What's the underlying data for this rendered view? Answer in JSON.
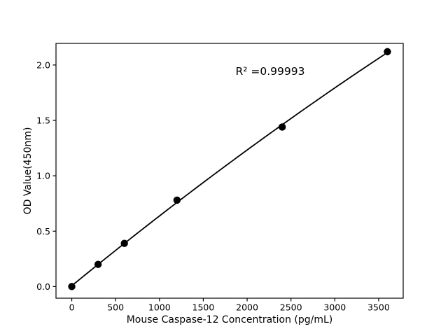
{
  "chart_data": {
    "type": "scatter",
    "title": "",
    "xlabel": "Mouse Caspase-12 Concentration (pg/mL)",
    "ylabel": "OD Value(450nm)",
    "annotation": "R² =0.99993",
    "series": [
      {
        "name": "standard-curve",
        "x": [
          0,
          300,
          600,
          1200,
          2400,
          3600
        ],
        "y": [
          0.0,
          0.2,
          0.39,
          0.78,
          1.44,
          2.12
        ]
      }
    ],
    "fit": "quadratic",
    "x_ticks": {
      "values": [
        0,
        500,
        1000,
        1500,
        2000,
        2500,
        3000,
        3500
      ],
      "labels": [
        "0",
        "500",
        "1000",
        "1500",
        "2000",
        "2500",
        "3000",
        "3500"
      ]
    },
    "y_ticks": {
      "values": [
        0.0,
        0.5,
        1.0,
        1.5,
        2.0
      ],
      "labels": [
        "0.0",
        "0.5",
        "1.0",
        "1.5",
        "2.0"
      ]
    },
    "xlim": [
      -180,
      3780
    ],
    "ylim": [
      -0.105,
      2.195
    ],
    "grid": false,
    "legend": "none",
    "colors": {
      "marker": "#000000",
      "line": "#000000",
      "axis": "#000000",
      "background": "#ffffff"
    }
  }
}
